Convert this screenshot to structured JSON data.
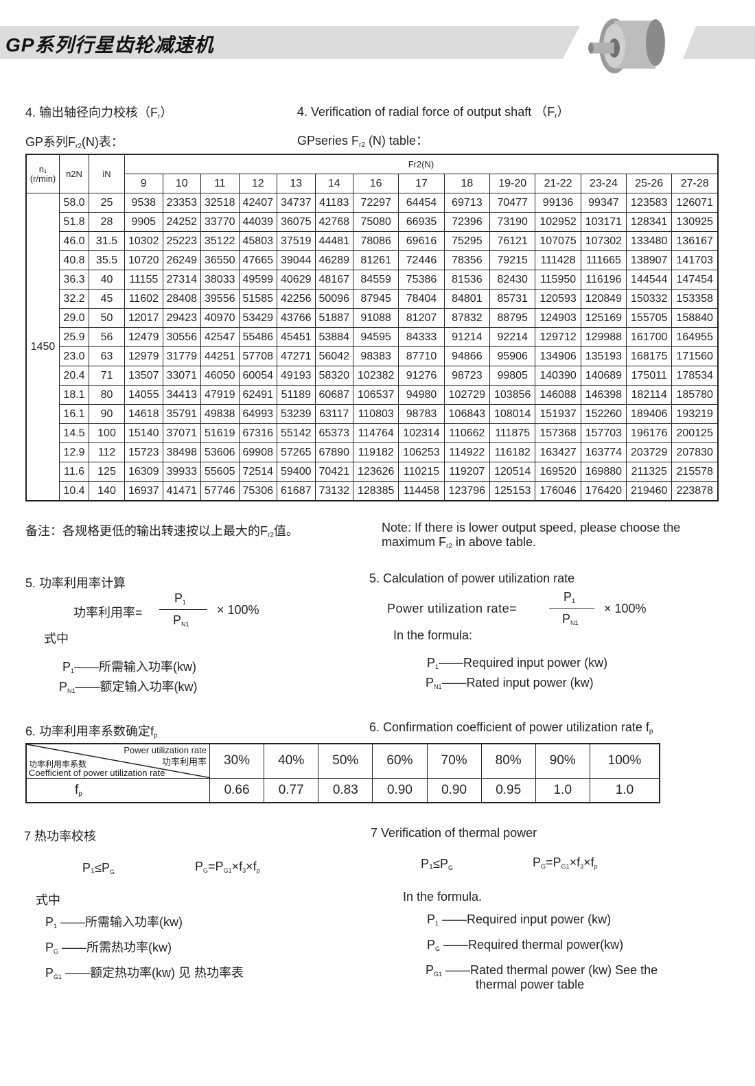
{
  "header": {
    "title": "GP系列行星齿轮减速机",
    "product_image": "planetary-gearbox-image"
  },
  "section4": {
    "cn_title": "4. 输出轴径向力校核（F",
    "cn_title_sub": "r",
    "cn_title_end": "）",
    "en_title": "4. Verification of radial force  of output shaft （F",
    "en_title_sub": "r",
    "en_title_end": "）",
    "cn_table_label": "GP系列F",
    "cn_table_label_sub": "r2",
    "cn_table_label_end": "(N)表：",
    "en_table_label": "GPseries F",
    "en_table_label_sub": "r2",
    "en_table_label_end": " (N) table：",
    "table": {
      "head_n1": "n₁\n(r/min)",
      "head_n2n": "n2N",
      "head_in": "iN",
      "head_fr2": "Fr2(N)",
      "sizes": [
        "9",
        "10",
        "11",
        "12",
        "13",
        "14",
        "16",
        "17",
        "18",
        "19-20",
        "21-22",
        "23-24",
        "25-26",
        "27-28"
      ],
      "n1": "1450",
      "rows": [
        {
          "n2n": "58.0",
          "in": "25",
          "values": [
            "9538",
            "23353",
            "32518",
            "42407",
            "34737",
            "41183",
            "72297",
            "64454",
            "69713",
            "70477",
            "99136",
            "99347",
            "123583",
            "126071"
          ]
        },
        {
          "n2n": "51.8",
          "in": "28",
          "values": [
            "9905",
            "24252",
            "33770",
            "44039",
            "36075",
            "42768",
            "75080",
            "66935",
            "72396",
            "73190",
            "102952",
            "103171",
            "128341",
            "130925"
          ]
        },
        {
          "n2n": "46.0",
          "in": "31.5",
          "values": [
            "10302",
            "25223",
            "35122",
            "45803",
            "37519",
            "44481",
            "78086",
            "69616",
            "75295",
            "76121",
            "107075",
            "107302",
            "133480",
            "136167"
          ]
        },
        {
          "n2n": "40.8",
          "in": "35.5",
          "values": [
            "10720",
            "26249",
            "36550",
            "47665",
            "39044",
            "46289",
            "81261",
            "72446",
            "78356",
            "79215",
            "111428",
            "111665",
            "138907",
            "141703"
          ]
        },
        {
          "n2n": "36.3",
          "in": "40",
          "values": [
            "11155",
            "27314",
            "38033",
            "49599",
            "40629",
            "48167",
            "84559",
            "75386",
            "81536",
            "82430",
            "115950",
            "116196",
            "144544",
            "147454"
          ]
        },
        {
          "n2n": "32.2",
          "in": "45",
          "values": [
            "11602",
            "28408",
            "39556",
            "51585",
            "42256",
            "50096",
            "87945",
            "78404",
            "84801",
            "85731",
            "120593",
            "120849",
            "150332",
            "153358"
          ]
        },
        {
          "n2n": "29.0",
          "in": "50",
          "values": [
            "12017",
            "29423",
            "40970",
            "53429",
            "43766",
            "51887",
            "91088",
            "81207",
            "87832",
            "88795",
            "124903",
            "125169",
            "155705",
            "158840"
          ]
        },
        {
          "n2n": "25.9",
          "in": "56",
          "values": [
            "12479",
            "30556",
            "42547",
            "55486",
            "45451",
            "53884",
            "94595",
            "84333",
            "91214",
            "92214",
            "129712",
            "129988",
            "161700",
            "164955"
          ]
        },
        {
          "n2n": "23.0",
          "in": "63",
          "values": [
            "12979",
            "31779",
            "44251",
            "57708",
            "47271",
            "56042",
            "98383",
            "87710",
            "94866",
            "95906",
            "134906",
            "135193",
            "168175",
            "171560"
          ]
        },
        {
          "n2n": "20.4",
          "in": "71",
          "values": [
            "13507",
            "33071",
            "46050",
            "60054",
            "49193",
            "58320",
            "102382",
            "91276",
            "98723",
            "99805",
            "140390",
            "140689",
            "175011",
            "178534"
          ]
        },
        {
          "n2n": "18.1",
          "in": "80",
          "values": [
            "14055",
            "34413",
            "47919",
            "62491",
            "51189",
            "60687",
            "106537",
            "94980",
            "102729",
            "103856",
            "146088",
            "146398",
            "182114",
            "185780"
          ]
        },
        {
          "n2n": "16.1",
          "in": "90",
          "values": [
            "14618",
            "35791",
            "49838",
            "64993",
            "53239",
            "63117",
            "110803",
            "98783",
            "106843",
            "108014",
            "151937",
            "152260",
            "189406",
            "193219"
          ]
        },
        {
          "n2n": "14.5",
          "in": "100",
          "values": [
            "15140",
            "37071",
            "51619",
            "67316",
            "55142",
            "65373",
            "114764",
            "102314",
            "110662",
            "111875",
            "157368",
            "157703",
            "196176",
            "200125"
          ]
        },
        {
          "n2n": "12.9",
          "in": "112",
          "values": [
            "15723",
            "38498",
            "53606",
            "69908",
            "57265",
            "67890",
            "119182",
            "106253",
            "114922",
            "116182",
            "163427",
            "163774",
            "203729",
            "207830"
          ]
        },
        {
          "n2n": "11.6",
          "in": "125",
          "values": [
            "16309",
            "39933",
            "55605",
            "72514",
            "59400",
            "70421",
            "123626",
            "110215",
            "119207",
            "120514",
            "169520",
            "169880",
            "211325",
            "215578"
          ]
        },
        {
          "n2n": "10.4",
          "in": "140",
          "values": [
            "16937",
            "41471",
            "57746",
            "75306",
            "61687",
            "73132",
            "128385",
            "114458",
            "123796",
            "125153",
            "176046",
            "176420",
            "219460",
            "223878"
          ]
        }
      ]
    },
    "cn_note": "备注：各规格更低的输出转速按以上最大的F",
    "cn_note_sub": "r2",
    "cn_note_end": "值。",
    "en_note_1": "Note: If there is lower output speed, please choose the",
    "en_note_2": "maximum F",
    "en_note_sub": "r2",
    "en_note_end": " in above table."
  },
  "section5": {
    "cn_title": "5. 功率利用率计算",
    "en_title": "5. Calculation of power utilization rate",
    "cn_formula_label": "功率利用率=",
    "en_formula_label": "Power utilization rate=",
    "numerator": "P",
    "numerator_sub": "1",
    "denominator": "P",
    "denominator_sub": "N1",
    "multiplier": "× 100%",
    "cn_where": "式中",
    "en_where": "In the formula:",
    "cn_defs": [
      {
        "sym": "P",
        "sub": "1",
        "text": "——所需输入功率(kw)"
      },
      {
        "sym": "P",
        "sub": "N1",
        "text": "——额定输入功率(kw)"
      }
    ],
    "en_defs": [
      {
        "sym": "P",
        "sub": "1",
        "text": "——Required input power (kw)"
      },
      {
        "sym": "P",
        "sub": "N1",
        "text": "——Rated  input  power (kw)"
      }
    ]
  },
  "section6": {
    "cn_title": "6. 功率利用率系数确定f",
    "cn_title_sub": "p",
    "en_title": "6. Confirmation coefficient of power utilization rate f",
    "en_title_sub": "p",
    "corner_top_en": "Power utilization rate",
    "corner_top_cn": "功率利用率",
    "corner_bottom_cn": "功率利用率系数",
    "corner_bottom_en": "Coefficient of  power utilization rate",
    "row_label": "f",
    "row_label_sub": "p",
    "rates": [
      "30%",
      "40%",
      "50%",
      "60%",
      "70%",
      "80%",
      "90%",
      "100%"
    ],
    "fp": [
      "0.66",
      "0.77",
      "0.83",
      "0.90",
      "0.90",
      "0.95",
      "1.0",
      "1.0"
    ]
  },
  "section7": {
    "cn_title": "7  热功率校核",
    "en_title": "7  Verification of thermal power",
    "cond": "P₁≤P",
    "cond_sub": "G",
    "formula": "P",
    "formula_sub": "G",
    "formula_rest": "=P",
    "formula_sub2": "G1",
    "formula_rest2": "×f",
    "formula_sub3": "3",
    "formula_rest3": "×f",
    "formula_sub4": "p",
    "cn_where": "式中",
    "en_where": "In the formula.",
    "cn_defs": [
      {
        "sym": "P",
        "sub": "1",
        "text": "——所需输入功率(kw)"
      },
      {
        "sym": "P",
        "sub": "G",
        "text": "——所需热功率(kw)"
      },
      {
        "sym": "P",
        "sub": "G1",
        "text": "——额定热功率(kw) 见 热功率表"
      }
    ],
    "en_defs": [
      {
        "sym": "P",
        "sub": "1",
        "text": "——Required input power (kw)"
      },
      {
        "sym": "P",
        "sub": "G",
        "text": "——Required thermal power(kw)"
      },
      {
        "sym": "P",
        "sub": "G1",
        "text": "——Rated thermal power  (kw) See the"
      }
    ],
    "en_def3_line2": "thermal power table"
  }
}
